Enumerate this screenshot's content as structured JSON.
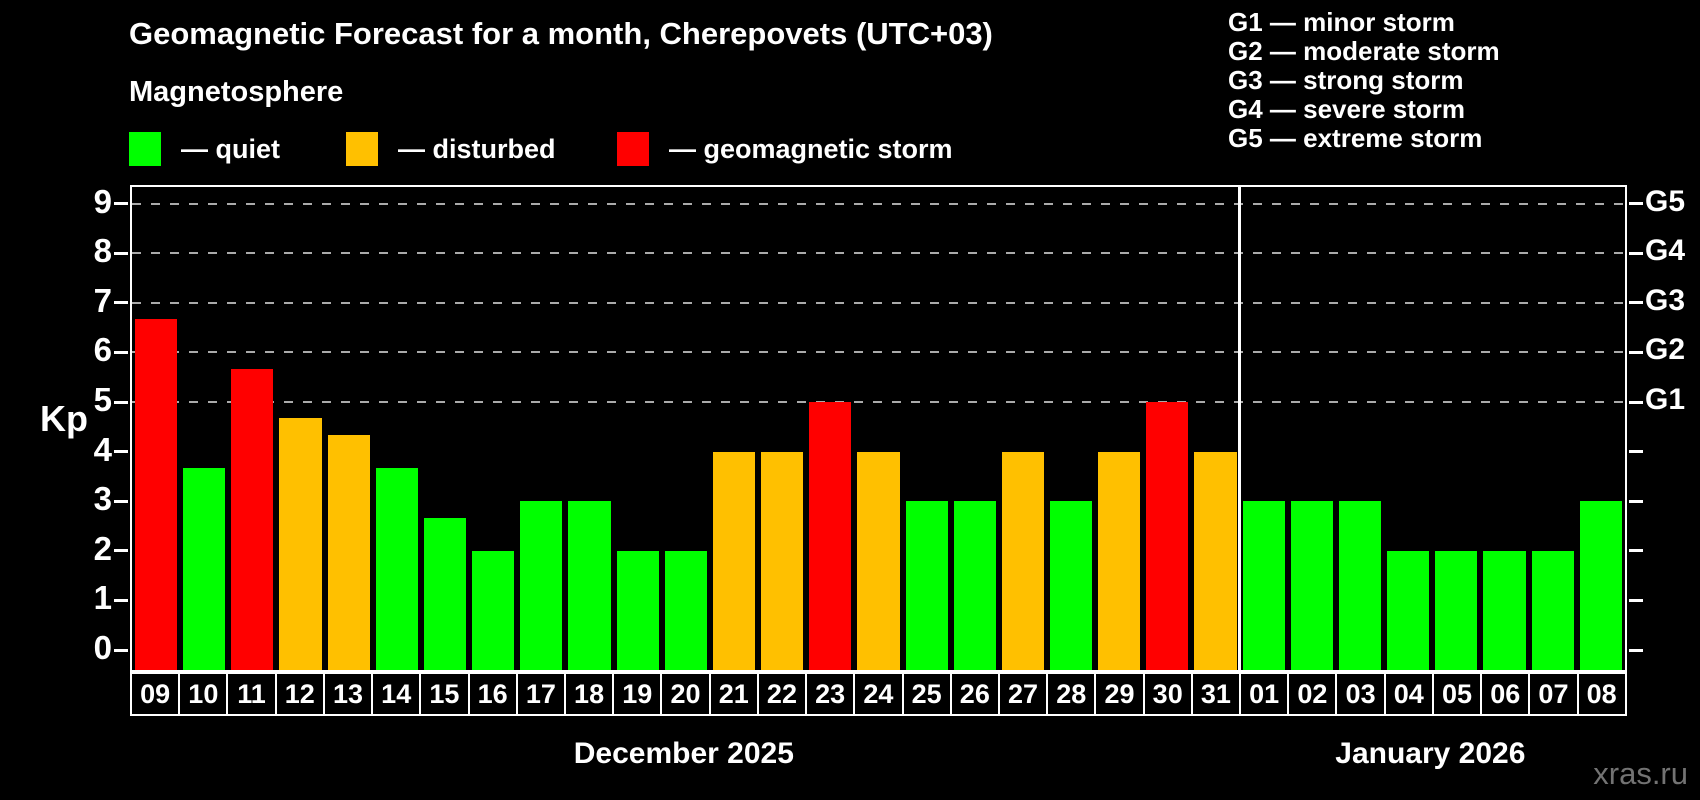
{
  "title": "Geomagnetic Forecast for a month, Cherepovets (UTC+03)",
  "subtitle": "Magnetosphere",
  "watermark": "xras.ru",
  "colors": {
    "background": "#000000",
    "quiet": "#00ff00",
    "disturbed": "#ffc000",
    "storm": "#ff0000",
    "grid": "#aaaaaa",
    "axis": "#ffffff",
    "watermark": "#737373"
  },
  "legend": {
    "items": [
      {
        "status": "quiet",
        "label": "— quiet"
      },
      {
        "status": "disturbed",
        "label": "— disturbed"
      },
      {
        "status": "storm",
        "label": "— geomagnetic storm"
      }
    ]
  },
  "g_legend": [
    "G1 — minor storm",
    "G2 — moderate storm",
    "G3 — strong storm",
    "G4 — severe storm",
    "G5 — extreme storm"
  ],
  "axes": {
    "y_label": "Kp",
    "y_ticks": [
      0,
      1,
      2,
      3,
      4,
      5,
      6,
      7,
      8,
      9
    ],
    "right_labels": [
      {
        "label": "G1",
        "kp": 5
      },
      {
        "label": "G2",
        "kp": 6
      },
      {
        "label": "G3",
        "kp": 7
      },
      {
        "label": "G4",
        "kp": 8
      },
      {
        "label": "G5",
        "kp": 9
      }
    ]
  },
  "months": [
    {
      "label": "December 2025",
      "days": 23
    },
    {
      "label": "January 2026",
      "days": 8
    }
  ],
  "chart_data": {
    "type": "bar",
    "title": "Geomagnetic Forecast for a month, Cherepovets (UTC+03)",
    "xlabel": "",
    "ylabel": "Kp",
    "ylim": [
      0,
      9
    ],
    "grid": "dashed horizontal at Kp 5-9 only",
    "legend_position": "top-left statuses, top-right G scale",
    "gridlines_kp": [
      5,
      6,
      7,
      8,
      9
    ],
    "categories": [
      "09",
      "10",
      "11",
      "12",
      "13",
      "14",
      "15",
      "16",
      "17",
      "18",
      "19",
      "20",
      "21",
      "22",
      "23",
      "24",
      "25",
      "26",
      "27",
      "28",
      "29",
      "30",
      "31",
      "01",
      "02",
      "03",
      "04",
      "05",
      "06",
      "07",
      "08"
    ],
    "values": [
      6.67,
      3.67,
      5.67,
      4.67,
      4.33,
      3.67,
      2.67,
      2,
      3,
      3,
      2,
      2,
      4,
      4,
      5,
      4,
      3,
      3,
      4,
      3,
      4,
      5,
      4,
      3,
      3,
      3,
      2,
      2,
      2,
      2,
      3
    ],
    "statuses": [
      "storm",
      "quiet",
      "storm",
      "disturbed",
      "disturbed",
      "quiet",
      "quiet",
      "quiet",
      "quiet",
      "quiet",
      "quiet",
      "quiet",
      "disturbed",
      "disturbed",
      "storm",
      "disturbed",
      "quiet",
      "quiet",
      "disturbed",
      "quiet",
      "disturbed",
      "storm",
      "disturbed",
      "quiet",
      "quiet",
      "quiet",
      "quiet",
      "quiet",
      "quiet",
      "quiet",
      "quiet"
    ]
  }
}
